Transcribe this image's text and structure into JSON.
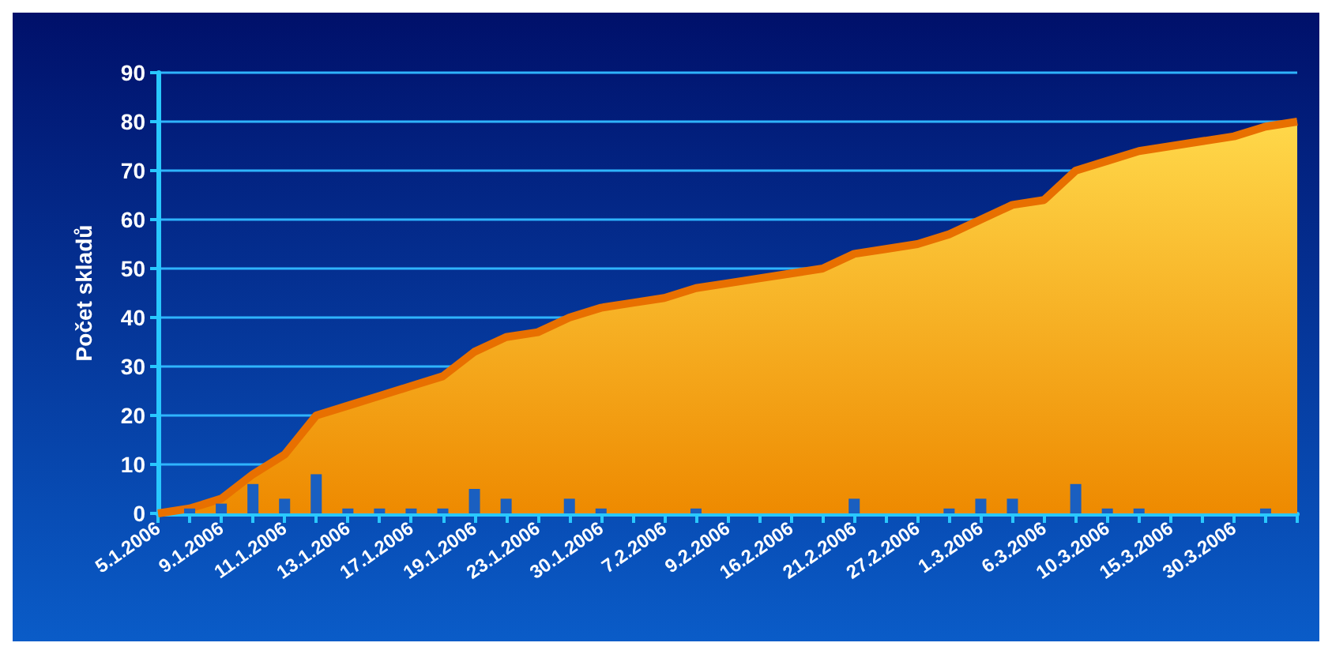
{
  "chart_data": {
    "type": "area",
    "ylabel": "Počet skladů",
    "categories": [
      "5.1.2006",
      null,
      "9.1.2006",
      null,
      "11.1.2006",
      null,
      "13.1.2006",
      null,
      "17.1.2006",
      null,
      "19.1.2006",
      null,
      "23.1.2006",
      null,
      "30.1.2006",
      null,
      "7.2.2006",
      null,
      "9.2.2006",
      null,
      "16.2.2006",
      null,
      "21.2.2006",
      null,
      "27.2.2006",
      null,
      "1.3.2006",
      null,
      "6.3.2006",
      null,
      "10.3.2006",
      null,
      "15.3.2006",
      null,
      "30.3.2006",
      null,
      null
    ],
    "series": [
      {
        "color": "#e87000",
        "values": [
          0,
          1,
          3,
          8,
          12,
          20,
          22,
          24,
          26,
          28,
          33,
          36,
          37,
          40,
          42,
          43,
          44,
          46,
          47,
          48,
          49,
          50,
          53,
          54,
          55,
          57,
          60,
          63,
          64,
          70,
          72,
          74,
          75,
          76,
          77,
          79,
          80
        ]
      },
      {
        "type": "bar",
        "color": "#1a5fc0",
        "values": [
          0,
          1,
          2,
          6,
          3,
          8,
          1,
          1,
          1,
          1,
          5,
          3,
          0,
          3,
          1,
          0,
          0,
          1,
          0,
          0,
          0,
          0,
          3,
          0,
          0,
          1,
          3,
          3,
          0,
          6,
          1,
          1,
          0,
          0,
          0,
          1,
          0
        ]
      }
    ],
    "ylim": [
      0,
      90
    ],
    "yticks": [
      0,
      10,
      20,
      30,
      40,
      50,
      60,
      70,
      80,
      90
    ],
    "grid": "y"
  }
}
